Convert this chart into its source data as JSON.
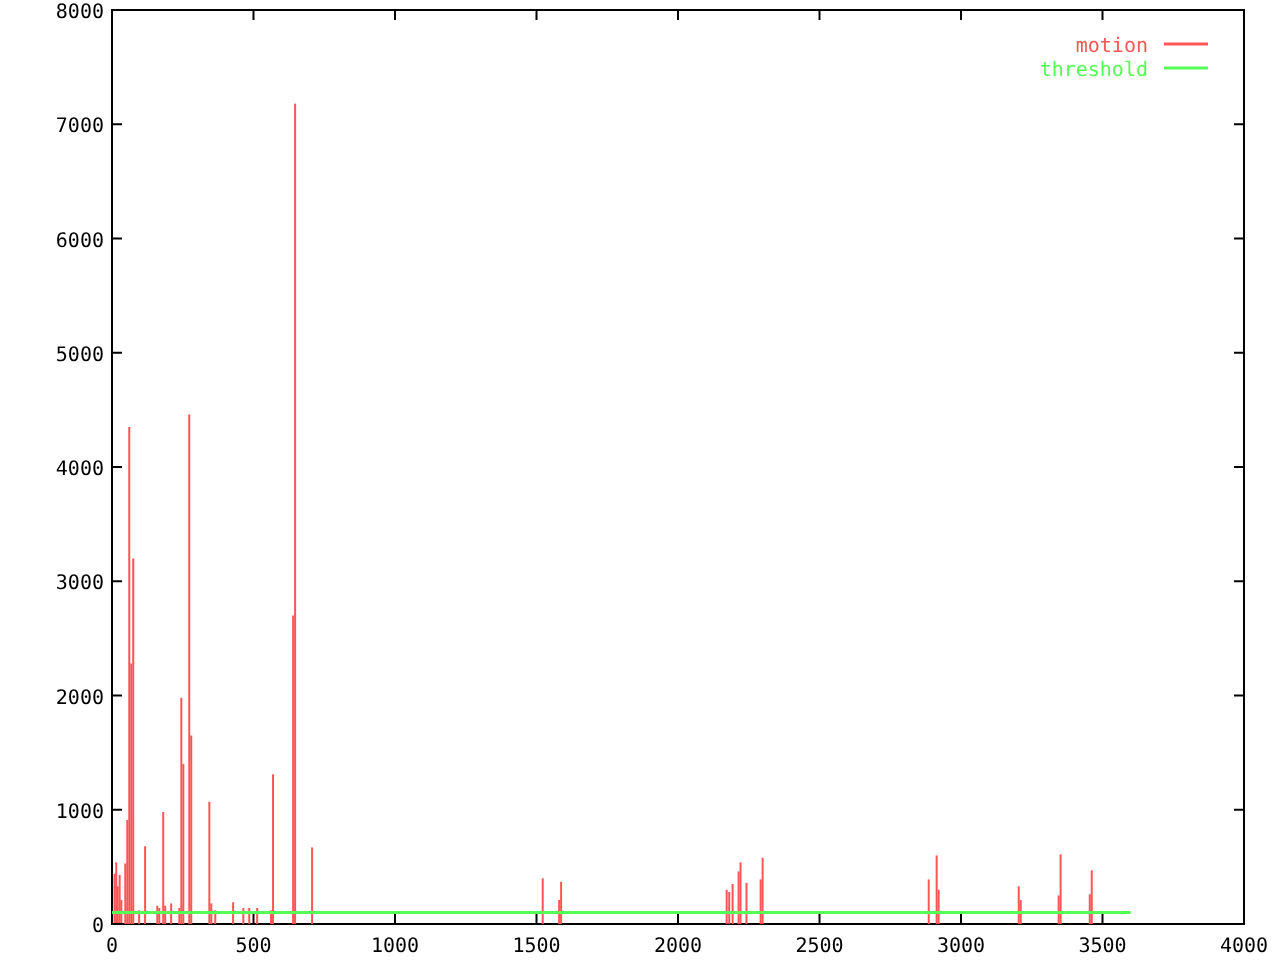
{
  "chart_data": {
    "type": "bar",
    "xlim": [
      0,
      4000
    ],
    "ylim": [
      0,
      8000
    ],
    "xticks": [
      0,
      500,
      1000,
      1500,
      2000,
      2500,
      3000,
      3500,
      4000
    ],
    "yticks": [
      0,
      1000,
      2000,
      3000,
      4000,
      5000,
      6000,
      7000,
      8000
    ],
    "grid": false,
    "legend": "top right",
    "series": [
      {
        "name": "motion",
        "color": "#ff5555",
        "x": [
          9,
          15,
          20,
          27,
          33,
          47,
          54,
          61,
          68,
          75,
          96,
          117,
          160,
          167,
          181,
          188,
          209,
          238,
          245,
          252,
          273,
          280,
          344,
          351,
          365,
          428,
          464,
          485,
          513,
          562,
          569,
          640,
          647,
          707,
          1522,
          1580,
          1587,
          2172,
          2181,
          2193,
          2214,
          2221,
          2242,
          2292,
          2299,
          2886,
          2914,
          2921,
          3204,
          3211,
          3345,
          3352,
          3455,
          3462
        ],
        "values": [
          440,
          540,
          330,
          430,
          210,
          530,
          910,
          4350,
          2280,
          3200,
          120,
          680,
          160,
          140,
          980,
          160,
          180,
          140,
          1980,
          1400,
          4460,
          1650,
          1070,
          180,
          120,
          190,
          140,
          140,
          140,
          120,
          1310,
          2700,
          7180,
          670,
          400,
          210,
          370,
          300,
          280,
          350,
          460,
          540,
          360,
          390,
          580,
          390,
          600,
          300,
          330,
          210,
          250,
          610,
          260,
          470
        ]
      },
      {
        "name": "threshold",
        "color": "#55ff55",
        "type": "line",
        "x": [
          0,
          3600
        ],
        "values": [
          100,
          100
        ]
      }
    ]
  }
}
